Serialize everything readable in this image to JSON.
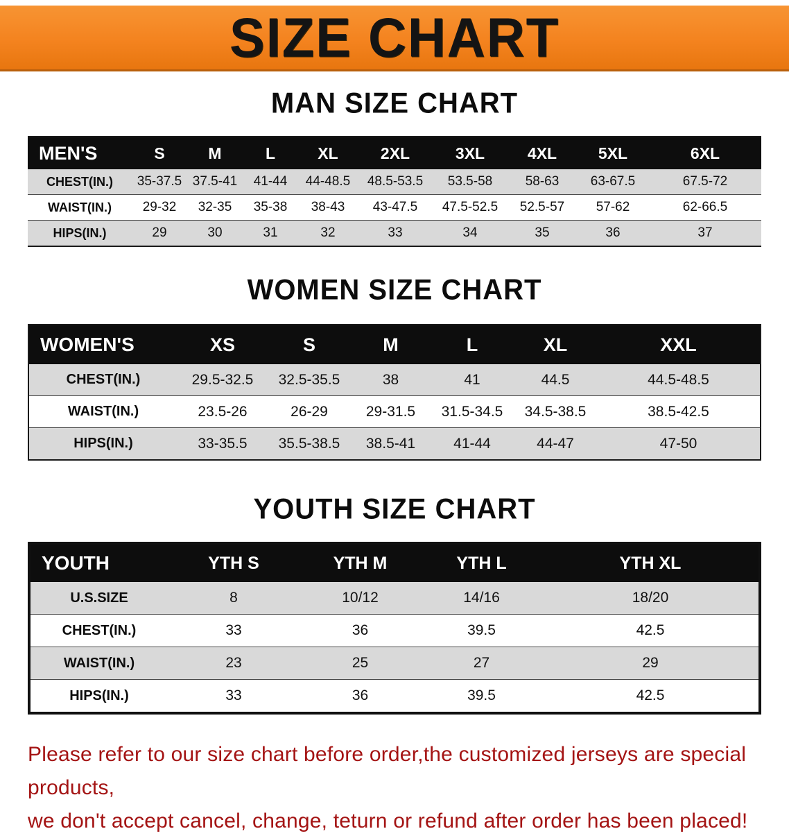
{
  "banner": {
    "title": "SIZE CHART"
  },
  "sections": [
    {
      "heading": "MAN SIZE CHART",
      "table": {
        "header": [
          "MEN'S",
          "S",
          "M",
          "L",
          "XL",
          "2XL",
          "3XL",
          "4XL",
          "5XL",
          "6XL"
        ],
        "rows": [
          [
            "CHEST(IN.)",
            "35-37.5",
            "37.5-41",
            "41-44",
            "44-48.5",
            "48.5-53.5",
            "53.5-58",
            "58-63",
            "63-67.5",
            "67.5-72"
          ],
          [
            "WAIST(IN.)",
            "29-32",
            "32-35",
            "35-38",
            "38-43",
            "43-47.5",
            "47.5-52.5",
            "52.5-57",
            "57-62",
            "62-66.5"
          ],
          [
            "HIPS(IN.)",
            "29",
            "30",
            "31",
            "32",
            "33",
            "34",
            "35",
            "36",
            "37"
          ]
        ]
      }
    },
    {
      "heading": "WOMEN SIZE CHART",
      "table": {
        "header": [
          "WOMEN'S",
          "XS",
          "S",
          "M",
          "L",
          "XL",
          "XXL"
        ],
        "rows": [
          [
            "CHEST(IN.)",
            "29.5-32.5",
            "32.5-35.5",
            "38",
            "41",
            "44.5",
            "44.5-48.5"
          ],
          [
            "WAIST(IN.)",
            "23.5-26",
            "26-29",
            "29-31.5",
            "31.5-34.5",
            "34.5-38.5",
            "38.5-42.5"
          ],
          [
            "HIPS(IN.)",
            "33-35.5",
            "35.5-38.5",
            "38.5-41",
            "41-44",
            "44-47",
            "47-50"
          ]
        ]
      }
    },
    {
      "heading": "YOUTH SIZE CHART",
      "table": {
        "header": [
          "YOUTH",
          "YTH S",
          "YTH M",
          "YTH L",
          "YTH XL"
        ],
        "rows": [
          [
            "U.S.SIZE",
            "8",
            "10/12",
            "14/16",
            "18/20"
          ],
          [
            "CHEST(IN.)",
            "33",
            "36",
            "39.5",
            "42.5"
          ],
          [
            "WAIST(IN.)",
            "23",
            "25",
            "27",
            "29"
          ],
          [
            "HIPS(IN.)",
            "33",
            "36",
            "39.5",
            "42.5"
          ]
        ]
      }
    }
  ],
  "footer": {
    "lines": [
      "Please refer to our size chart before order,the customized jerseys are special products,",
      "we don't accept cancel, change, teturn or refund after order has been placed!"
    ]
  },
  "colors": {
    "banner_orange": "#f4831f",
    "table_header_black": "#0d0d0d",
    "row_shade_gray": "#d9d9d9",
    "footer_red": "#a41414"
  }
}
